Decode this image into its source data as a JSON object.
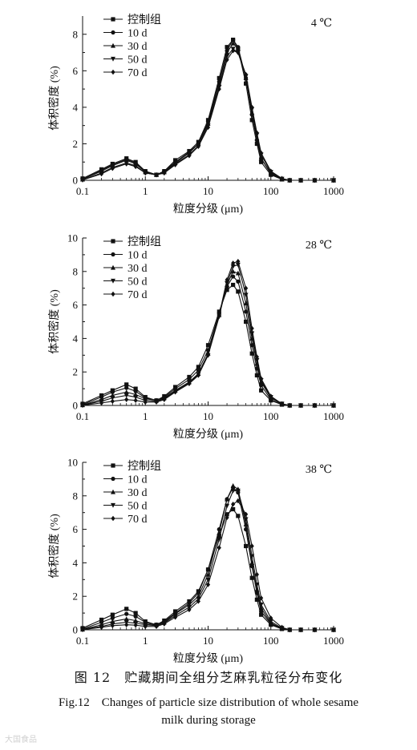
{
  "figure": {
    "caption_cn": "图 12　贮藏期间全组分芝麻乳粒径分布变化",
    "caption_en_line1": "Fig.12　Changes of particle size distribution of whole sesame",
    "caption_en_line2": "milk during storage",
    "watermark": "大国食品"
  },
  "chart_data": [
    {
      "type": "line",
      "panel_label": "4 ℃",
      "xlabel": "粒度分级 (μm)",
      "ylabel": "体积密度 (%)",
      "x_scale": "log",
      "xlim": [
        0.1,
        1000
      ],
      "ylim": [
        0,
        9
      ],
      "x_ticks": [
        "0.1",
        "1",
        "10",
        "100",
        "1000"
      ],
      "y_ticks": [
        "0",
        "2",
        "4",
        "6",
        "8"
      ],
      "legend_position": "top-left",
      "grid": false,
      "x": [
        0.1,
        0.2,
        0.3,
        0.5,
        0.7,
        1,
        1.5,
        2,
        3,
        5,
        7,
        10,
        15,
        20,
        25,
        30,
        40,
        50,
        60,
        70,
        100,
        150,
        200,
        300,
        500,
        1000
      ],
      "series": [
        {
          "name": "控制组",
          "marker": "square",
          "values": [
            0.1,
            0.6,
            0.9,
            1.2,
            1.0,
            0.5,
            0.3,
            0.5,
            1.1,
            1.6,
            2.1,
            3.3,
            5.6,
            7.3,
            7.7,
            7.2,
            5.3,
            3.3,
            2.0,
            1.0,
            0.3,
            0.05,
            0,
            0,
            0,
            0
          ]
        },
        {
          "name": "10 d",
          "marker": "circle",
          "values": [
            0.05,
            0.55,
            0.85,
            1.15,
            0.95,
            0.5,
            0.3,
            0.5,
            1.0,
            1.55,
            2.0,
            3.2,
            5.4,
            7.1,
            7.7,
            7.3,
            5.6,
            3.6,
            2.2,
            1.2,
            0.35,
            0.05,
            0,
            0,
            0,
            0
          ]
        },
        {
          "name": "30 d",
          "marker": "triangle-up",
          "values": [
            0.05,
            0.5,
            0.8,
            1.1,
            0.9,
            0.45,
            0.3,
            0.45,
            0.95,
            1.5,
            2.0,
            3.1,
            5.3,
            7.0,
            7.5,
            7.2,
            5.6,
            3.7,
            2.3,
            1.2,
            0.4,
            0.05,
            0,
            0,
            0,
            0
          ]
        },
        {
          "name": "50 d",
          "marker": "triangle-down",
          "values": [
            0.02,
            0.4,
            0.7,
            0.95,
            0.8,
            0.4,
            0.3,
            0.4,
            0.9,
            1.4,
            1.9,
            3.0,
            5.1,
            6.8,
            7.2,
            7.0,
            5.7,
            3.9,
            2.5,
            1.4,
            0.45,
            0.08,
            0,
            0,
            0,
            0
          ]
        },
        {
          "name": "70 d",
          "marker": "diamond",
          "values": [
            0.02,
            0.35,
            0.65,
            0.9,
            0.75,
            0.4,
            0.3,
            0.4,
            0.85,
            1.35,
            1.85,
            2.9,
            5.0,
            6.6,
            7.1,
            7.0,
            5.8,
            4.0,
            2.6,
            1.5,
            0.5,
            0.1,
            0,
            0,
            0,
            0
          ]
        }
      ]
    },
    {
      "type": "line",
      "panel_label": "28 ℃",
      "xlabel": "粒度分级 (μm)",
      "ylabel": "体积密度 (%)",
      "x_scale": "log",
      "xlim": [
        0.1,
        1000
      ],
      "ylim": [
        0,
        10
      ],
      "x_ticks": [
        "0.1",
        "1",
        "10",
        "100",
        "1000"
      ],
      "y_ticks": [
        "0",
        "2",
        "4",
        "6",
        "8",
        "10"
      ],
      "legend_position": "top-left",
      "grid": false,
      "x": [
        0.1,
        0.2,
        0.3,
        0.5,
        0.7,
        1,
        1.5,
        2,
        3,
        5,
        7,
        10,
        15,
        20,
        25,
        30,
        40,
        50,
        60,
        70,
        100,
        150,
        200,
        300,
        500,
        1000
      ],
      "series": [
        {
          "name": "控制组",
          "marker": "square",
          "values": [
            0.1,
            0.6,
            0.9,
            1.25,
            1.0,
            0.5,
            0.3,
            0.55,
            1.1,
            1.7,
            2.3,
            3.6,
            5.6,
            6.9,
            7.2,
            6.8,
            5.0,
            3.1,
            1.8,
            0.9,
            0.3,
            0.05,
            0,
            0,
            0,
            0
          ]
        },
        {
          "name": "10 d",
          "marker": "circle",
          "values": [
            0.05,
            0.5,
            0.8,
            1.05,
            0.85,
            0.45,
            0.3,
            0.5,
            1.0,
            1.55,
            2.1,
            3.3,
            5.5,
            7.1,
            7.7,
            7.4,
            5.6,
            3.6,
            2.2,
            1.2,
            0.35,
            0.05,
            0,
            0,
            0,
            0
          ]
        },
        {
          "name": "30 d",
          "marker": "triangle-up",
          "values": [
            0.02,
            0.35,
            0.6,
            0.8,
            0.65,
            0.4,
            0.3,
            0.45,
            0.9,
            1.4,
            1.9,
            3.1,
            5.4,
            7.2,
            8.0,
            7.9,
            6.1,
            4.0,
            2.5,
            1.4,
            0.45,
            0.08,
            0,
            0,
            0,
            0
          ]
        },
        {
          "name": "50 d",
          "marker": "triangle-down",
          "values": [
            0.02,
            0.25,
            0.45,
            0.6,
            0.5,
            0.3,
            0.25,
            0.4,
            0.85,
            1.35,
            1.85,
            3.0,
            5.3,
            7.3,
            8.3,
            8.4,
            6.6,
            4.3,
            2.7,
            1.5,
            0.5,
            0.1,
            0,
            0,
            0,
            0
          ]
        },
        {
          "name": "70 d",
          "marker": "diamond",
          "values": [
            0.01,
            0.15,
            0.25,
            0.35,
            0.3,
            0.2,
            0.2,
            0.35,
            0.8,
            1.3,
            1.8,
            3.0,
            5.4,
            7.5,
            8.5,
            8.6,
            7.0,
            4.6,
            2.9,
            1.6,
            0.55,
            0.1,
            0,
            0,
            0,
            0
          ]
        }
      ]
    },
    {
      "type": "line",
      "panel_label": "38 ℃",
      "xlabel": "粒度分级 (μm)",
      "ylabel": "体积密度 (%)",
      "x_scale": "log",
      "xlim": [
        0.1,
        1000
      ],
      "ylim": [
        0,
        10
      ],
      "x_ticks": [
        "0.1",
        "1",
        "10",
        "100",
        "1000"
      ],
      "y_ticks": [
        "0",
        "2",
        "4",
        "6",
        "8",
        "10"
      ],
      "legend_position": "top-left",
      "grid": false,
      "x": [
        0.1,
        0.2,
        0.3,
        0.5,
        0.7,
        1,
        1.5,
        2,
        3,
        5,
        7,
        10,
        15,
        20,
        25,
        30,
        40,
        50,
        60,
        70,
        100,
        150,
        200,
        300,
        500,
        1000
      ],
      "series": [
        {
          "name": "控制组",
          "marker": "square",
          "values": [
            0.1,
            0.6,
            0.9,
            1.25,
            1.0,
            0.5,
            0.3,
            0.55,
            1.1,
            1.7,
            2.3,
            3.6,
            5.6,
            6.9,
            7.2,
            6.8,
            5.0,
            3.1,
            1.8,
            0.9,
            0.3,
            0.05,
            0,
            0,
            0,
            0
          ]
        },
        {
          "name": "10 d",
          "marker": "circle",
          "values": [
            0.05,
            0.45,
            0.7,
            0.95,
            0.8,
            0.45,
            0.3,
            0.5,
            1.0,
            1.6,
            2.2,
            3.6,
            6.0,
            7.8,
            8.5,
            8.2,
            6.0,
            3.8,
            2.2,
            1.1,
            0.35,
            0.05,
            0,
            0,
            0,
            0
          ]
        },
        {
          "name": "30 d",
          "marker": "triangle-up",
          "values": [
            0.02,
            0.3,
            0.5,
            0.65,
            0.55,
            0.35,
            0.3,
            0.45,
            0.95,
            1.5,
            2.0,
            3.3,
            5.8,
            7.8,
            8.6,
            8.4,
            6.3,
            4.0,
            2.4,
            1.3,
            0.4,
            0.08,
            0,
            0,
            0,
            0
          ]
        },
        {
          "name": "50 d",
          "marker": "triangle-down",
          "values": [
            0.02,
            0.2,
            0.35,
            0.45,
            0.4,
            0.3,
            0.25,
            0.4,
            0.85,
            1.35,
            1.85,
            3.0,
            5.4,
            7.4,
            8.3,
            8.3,
            6.6,
            4.4,
            2.7,
            1.5,
            0.5,
            0.1,
            0,
            0,
            0,
            0
          ]
        },
        {
          "name": "70 d",
          "marker": "diamond",
          "values": [
            0.01,
            0.15,
            0.25,
            0.3,
            0.28,
            0.2,
            0.2,
            0.35,
            0.75,
            1.2,
            1.7,
            2.7,
            4.9,
            6.7,
            7.5,
            7.7,
            6.9,
            5.0,
            3.3,
            1.9,
            0.7,
            0.15,
            0,
            0,
            0,
            0
          ]
        }
      ]
    }
  ]
}
